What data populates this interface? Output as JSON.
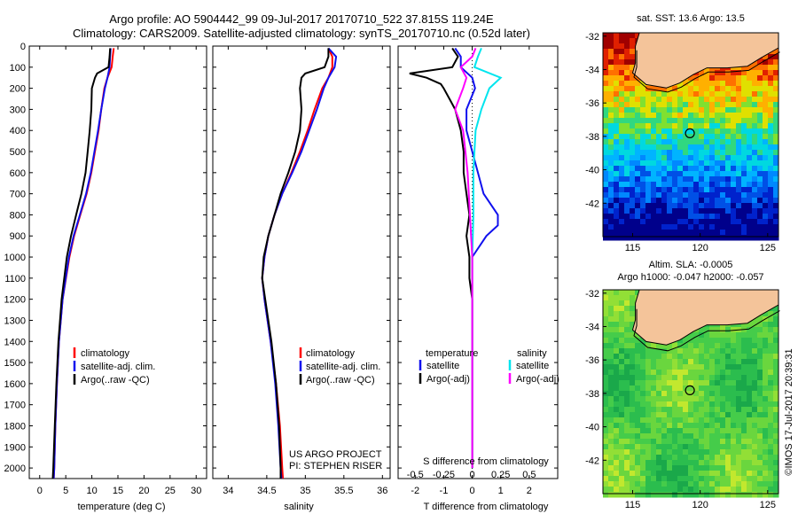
{
  "title": "Argo profile: AO 5904442_99 09-Jul-2017 20170710_522 37.815S 119.24E",
  "subtitle": "Climatology: CARS2009. Satellite-adjusted climatology: synTS_20170710.nc (0.52d later)",
  "credit": "©IMOS 17-Jul-2017 20:39:31",
  "colors": {
    "climatology": "#ff0000",
    "satellite": "#1010ee",
    "argo": "#000000",
    "salinity_satellite": "#00e5ee",
    "salinity_argo": "#ff00ff",
    "land": "#f4c49a"
  },
  "panels": {
    "project_line1": "US ARGO PROJECT",
    "project_line2": "PI: STEPHEN RISER",
    "map_top_title": "sat. SST: 13.6 Argo: 13.5",
    "map_bottom_title1": "Altim. SLA: -0.0005",
    "map_bottom_title2": "Argo h1000: -0.047 h2000: -0.057"
  },
  "legends": {
    "profile": [
      "climatology",
      "satellite-adj. clim.",
      "Argo(..raw -QC)"
    ],
    "diff_temperature_head": "temperature",
    "diff_salinity_head": "salinity",
    "diff_items": [
      "satellite",
      "Argo(-adj)"
    ]
  },
  "chart_data": [
    {
      "type": "line",
      "name": "temperature",
      "xlabel": "temperature (deg C)",
      "ylabel": "",
      "xlim": [
        -2,
        32
      ],
      "ylim": [
        2050,
        0
      ],
      "xticks": [
        0,
        5,
        10,
        15,
        20,
        25,
        30
      ],
      "yticks": [
        0,
        100,
        200,
        300,
        400,
        500,
        600,
        700,
        800,
        900,
        1000,
        1100,
        1200,
        1300,
        1400,
        1500,
        1600,
        1700,
        1800,
        1900,
        2000
      ],
      "series": [
        {
          "name": "climatology",
          "depth": [
            10,
            50,
            100,
            150,
            200,
            300,
            400,
            500,
            600,
            700,
            800,
            900,
            1000,
            1200,
            1400,
            1600,
            1800,
            2000,
            2050
          ],
          "values": [
            14.2,
            14.0,
            13.8,
            13.0,
            12.4,
            11.8,
            11.3,
            10.6,
            9.9,
            9.0,
            7.8,
            6.6,
            5.7,
            4.4,
            3.7,
            3.3,
            3.0,
            2.8,
            2.7
          ]
        },
        {
          "name": "satellite-adj. clim.",
          "depth": [
            10,
            50,
            100,
            150,
            200,
            300,
            400,
            500,
            600,
            700,
            800,
            900,
            1000,
            1200,
            1400,
            1600,
            1800,
            2000,
            2050
          ],
          "values": [
            13.6,
            13.5,
            13.4,
            13.0,
            12.5,
            11.8,
            11.2,
            10.5,
            9.8,
            8.9,
            7.7,
            6.5,
            5.6,
            4.4,
            3.7,
            3.3,
            3.0,
            2.8,
            2.7
          ]
        },
        {
          "name": "Argo(..raw -QC)",
          "depth": [
            10,
            50,
            100,
            130,
            150,
            200,
            300,
            400,
            500,
            600,
            700,
            800,
            900,
            1000,
            1200,
            1400,
            1600,
            1800,
            2000,
            2050
          ],
          "values": [
            13.5,
            13.4,
            13.2,
            11.0,
            10.6,
            10.0,
            9.9,
            9.6,
            9.2,
            8.8,
            8.0,
            7.0,
            6.0,
            5.2,
            4.2,
            3.6,
            3.2,
            2.9,
            2.6,
            2.5
          ]
        }
      ]
    },
    {
      "type": "line",
      "name": "salinity",
      "xlabel": "salinity",
      "ylabel": "",
      "xlim": [
        33.8,
        36.1
      ],
      "ylim": [
        2050,
        0
      ],
      "xticks": [
        34,
        34.5,
        35,
        35.5,
        36
      ],
      "series": [
        {
          "name": "climatology",
          "depth": [
            10,
            50,
            100,
            150,
            200,
            300,
            400,
            500,
            600,
            700,
            800,
            900,
            1000,
            1100,
            1200,
            1400,
            1600,
            1800,
            2000,
            2050
          ],
          "values": [
            35.3,
            35.35,
            35.35,
            35.3,
            35.22,
            35.12,
            35.03,
            34.93,
            34.82,
            34.7,
            34.6,
            34.52,
            34.47,
            34.44,
            34.47,
            34.55,
            34.62,
            34.67,
            34.7,
            34.71
          ]
        },
        {
          "name": "satellite-adj. clim.",
          "depth": [
            10,
            50,
            100,
            150,
            200,
            300,
            400,
            500,
            600,
            700,
            800,
            900,
            1000,
            1100,
            1200,
            1400,
            1600,
            1800,
            2000,
            2050
          ],
          "values": [
            35.3,
            35.4,
            35.38,
            35.3,
            35.24,
            35.15,
            35.05,
            34.95,
            34.83,
            34.7,
            34.6,
            34.52,
            34.47,
            34.44,
            34.47,
            34.55,
            34.61,
            34.65,
            34.68,
            34.69
          ]
        },
        {
          "name": "Argo(..raw -QC)",
          "depth": [
            10,
            50,
            100,
            130,
            150,
            200,
            300,
            400,
            500,
            600,
            700,
            800,
            900,
            1000,
            1100,
            1200,
            1400,
            1600,
            1800,
            2000,
            2050
          ],
          "values": [
            35.3,
            35.3,
            35.25,
            35.0,
            34.95,
            34.93,
            34.95,
            34.93,
            34.87,
            34.78,
            34.68,
            34.6,
            34.52,
            34.46,
            34.44,
            34.48,
            34.56,
            34.62,
            34.66,
            34.68,
            34.68
          ]
        }
      ]
    },
    {
      "type": "line",
      "name": "difference from climatology",
      "xlabel": "T difference from climatology",
      "xlabel2": "S difference from climatology",
      "xlim": [
        -2.6,
        3.0
      ],
      "xticks": [
        -2,
        -1,
        0,
        1,
        2
      ],
      "xticks2_values": [
        -0.5,
        -0.25,
        0,
        0.25,
        0.5
      ],
      "xticks2_labels": [
        "-0.5",
        "-0.25",
        "0",
        "0.25",
        "0.5"
      ],
      "ylim": [
        2050,
        0
      ],
      "series": [
        {
          "name": "temperature satellite",
          "depth": [
            10,
            50,
            100,
            150,
            200,
            300,
            400,
            500,
            600,
            700,
            800,
            850,
            900,
            1000,
            1200,
            1400,
            1600,
            1800,
            2000
          ],
          "values": [
            -0.6,
            -0.4,
            -0.4,
            0,
            0.1,
            -0.2,
            -0.2,
            0,
            0.2,
            0.4,
            0.9,
            0.9,
            0.5,
            0,
            0,
            0,
            0,
            0,
            0
          ]
        },
        {
          "name": "temperature Argo(-adj)",
          "depth": [
            10,
            50,
            100,
            130,
            150,
            180,
            200,
            250,
            300,
            400,
            500,
            600,
            700,
            800,
            900,
            1000,
            1100,
            1200,
            1300,
            1400,
            1600,
            1800,
            2000
          ],
          "values": [
            -0.7,
            -0.5,
            -0.7,
            -2.2,
            -1.6,
            -1.1,
            -1.0,
            -0.8,
            -0.6,
            -0.4,
            -0.3,
            -0.3,
            -0.2,
            -0.1,
            -0.2,
            -0.1,
            -0.1,
            0,
            0,
            0,
            0,
            0,
            0
          ]
        },
        {
          "name": "salinity satellite",
          "depth": [
            10,
            50,
            100,
            150,
            200,
            300,
            400,
            500,
            600,
            800,
            1000,
            1200,
            1400,
            1600,
            1800,
            2000
          ],
          "values": [
            0.08,
            0.05,
            0.02,
            0.25,
            0.15,
            0.08,
            0.03,
            0.02,
            0.01,
            0.01,
            0,
            0,
            0,
            0,
            0,
            0
          ]
        },
        {
          "name": "salinity Argo(-adj)",
          "depth": [
            10,
            50,
            100,
            150,
            200,
            300,
            400,
            500,
            600,
            800,
            1000,
            1200,
            1400,
            1600,
            1800,
            2000
          ],
          "values": [
            0.03,
            0,
            -0.1,
            -0.05,
            -0.08,
            -0.15,
            -0.08,
            -0.06,
            -0.04,
            -0.02,
            0,
            0,
            0,
            0,
            0,
            0
          ]
        }
      ]
    },
    {
      "type": "heatmap",
      "name": "sat. SST map",
      "xticks": [
        115,
        120,
        125
      ],
      "yticks": [
        -32,
        -34,
        -36,
        -38,
        -40,
        -42
      ],
      "xlim": [
        112.8,
        125.8
      ],
      "ylim": [
        -44,
        -31.8
      ],
      "float_position": [
        119.24,
        -37.815
      ]
    },
    {
      "type": "heatmap",
      "name": "Altim. SLA map",
      "xticks": [
        115,
        120,
        125
      ],
      "yticks": [
        -32,
        -34,
        -36,
        -38,
        -40,
        -42
      ],
      "xlim": [
        112.8,
        125.8
      ],
      "ylim": [
        -44,
        -31.8
      ],
      "float_position": [
        119.24,
        -37.815
      ]
    }
  ]
}
